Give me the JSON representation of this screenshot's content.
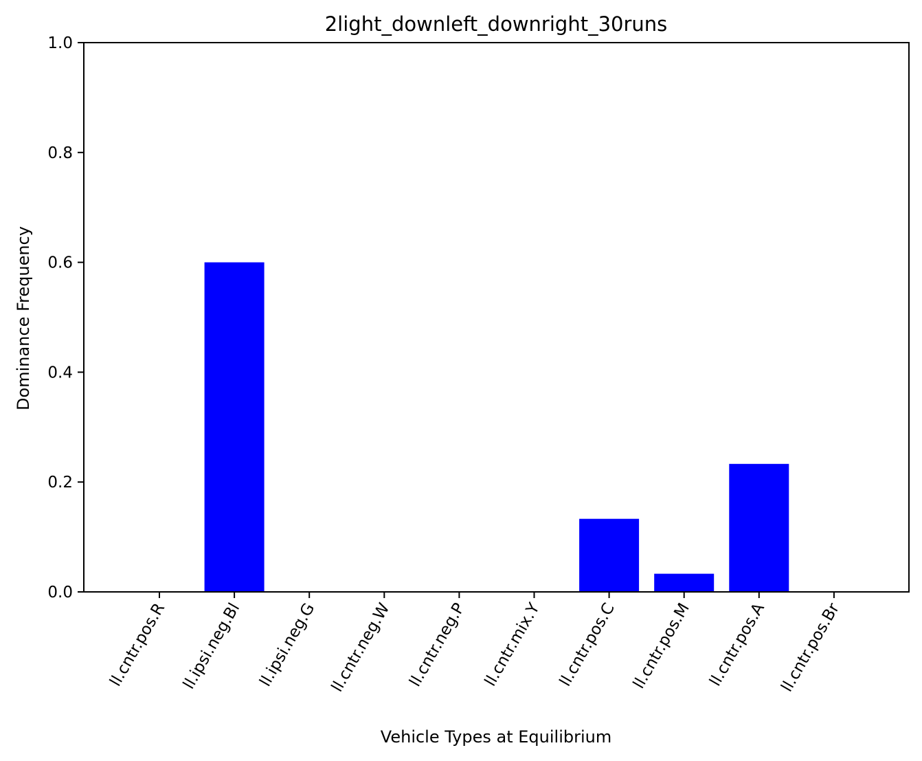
{
  "chart_data": {
    "type": "bar",
    "title": "2light_downleft_downright_30runs",
    "xlabel": "Vehicle Types at Equilibrium",
    "ylabel": "Dominance Frequency",
    "categories": [
      "ll.cntr.pos.R",
      "ll.ipsi.neg.Bl",
      "ll.ipsi.neg.G",
      "ll.cntr.neg.W",
      "ll.cntr.neg.P",
      "ll.cntr.mix.Y",
      "ll.cntr.pos.C",
      "ll.cntr.pos.M",
      "ll.cntr.pos.A",
      "ll.cntr.pos.Br"
    ],
    "values": [
      0.0,
      0.6,
      0.0,
      0.0,
      0.0,
      0.0,
      0.133,
      0.033,
      0.233,
      0.0
    ],
    "ylim": [
      0,
      1.0
    ],
    "yticks": [
      "0.0",
      "0.2",
      "0.4",
      "0.6",
      "0.8",
      "1.0"
    ],
    "bar_color": "#0000ff",
    "grid": false,
    "legend": false
  }
}
